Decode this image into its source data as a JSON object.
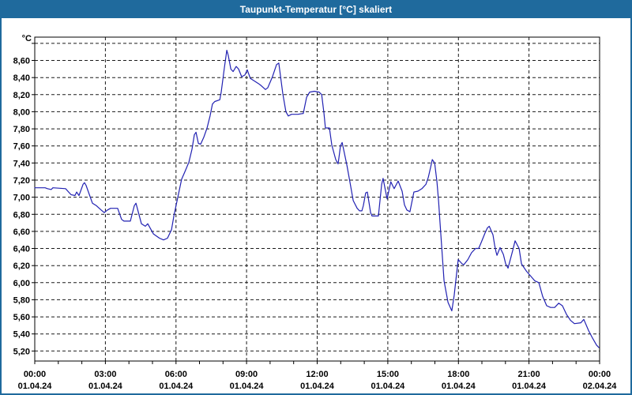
{
  "window": {
    "title": "Taupunkt-Temperatur [°C] skaliert"
  },
  "colors": {
    "titlebar": "#1f6a9d",
    "border": "#1f6a9d",
    "line": "#2121b2",
    "grid": "#1a1a1a",
    "frame": "#000000",
    "text": "#000000",
    "background": "#ffffff"
  },
  "chart_data": {
    "type": "line",
    "title": "Taupunkt-Temperatur [°C] skaliert",
    "y_unit_label": "°C",
    "ylabel": "°C",
    "xlabel": "",
    "ylim": [
      5.083,
      8.873
    ],
    "xlim_hours": [
      0,
      24
    ],
    "grid": "dashed",
    "legend": "none",
    "y_ticks": [
      {
        "value": 8.8,
        "label": ""
      },
      {
        "value": 8.6,
        "label": "8,60"
      },
      {
        "value": 8.4,
        "label": "8,40"
      },
      {
        "value": 8.2,
        "label": "8,20"
      },
      {
        "value": 8.0,
        "label": "8,00"
      },
      {
        "value": 7.8,
        "label": "7,80"
      },
      {
        "value": 7.6,
        "label": "7,60"
      },
      {
        "value": 7.4,
        "label": "7,40"
      },
      {
        "value": 7.2,
        "label": "7,20"
      },
      {
        "value": 7.0,
        "label": "7,00"
      },
      {
        "value": 6.8,
        "label": "6,80"
      },
      {
        "value": 6.6,
        "label": "6,60"
      },
      {
        "value": 6.4,
        "label": "6,40"
      },
      {
        "value": 6.2,
        "label": "6,20"
      },
      {
        "value": 6.0,
        "label": "6,00"
      },
      {
        "value": 5.8,
        "label": "5,80"
      },
      {
        "value": 5.6,
        "label": "5,60"
      },
      {
        "value": 5.4,
        "label": "5,40"
      },
      {
        "value": 5.2,
        "label": "5,20"
      }
    ],
    "x_ticks": [
      {
        "hour": 0,
        "time": "00:00",
        "date": "01.04.24"
      },
      {
        "hour": 3,
        "time": "03:00",
        "date": "01.04.24"
      },
      {
        "hour": 6,
        "time": "06:00",
        "date": "01.04.24"
      },
      {
        "hour": 9,
        "time": "09:00",
        "date": "01.04.24"
      },
      {
        "hour": 12,
        "time": "12:00",
        "date": "01.04.24"
      },
      {
        "hour": 15,
        "time": "15:00",
        "date": "01.04.24"
      },
      {
        "hour": 18,
        "time": "18:00",
        "date": "01.04.24"
      },
      {
        "hour": 21,
        "time": "21:00",
        "date": "01.04.24"
      },
      {
        "hour": 24,
        "time": "00:00",
        "date": "02.04.24"
      }
    ],
    "minor_tick_every_hours": 1,
    "series": [
      {
        "name": "Taupunkt-Temperatur [°C]",
        "points": [
          [
            0.0,
            7.11
          ],
          [
            0.44,
            7.11
          ],
          [
            0.54,
            7.1
          ],
          [
            0.7,
            7.09
          ],
          [
            0.77,
            7.11
          ],
          [
            1.31,
            7.1
          ],
          [
            1.44,
            7.06
          ],
          [
            1.54,
            7.03
          ],
          [
            1.71,
            7.02
          ],
          [
            1.78,
            7.06
          ],
          [
            1.88,
            7.02
          ],
          [
            2.05,
            7.15
          ],
          [
            2.11,
            7.17
          ],
          [
            2.18,
            7.14
          ],
          [
            2.45,
            6.93
          ],
          [
            2.62,
            6.9
          ],
          [
            2.82,
            6.85
          ],
          [
            2.95,
            6.82
          ],
          [
            3.09,
            6.85
          ],
          [
            3.22,
            6.87
          ],
          [
            3.52,
            6.87
          ],
          [
            3.69,
            6.74
          ],
          [
            3.79,
            6.72
          ],
          [
            4.06,
            6.72
          ],
          [
            4.23,
            6.9
          ],
          [
            4.3,
            6.93
          ],
          [
            4.53,
            6.69
          ],
          [
            4.7,
            6.66
          ],
          [
            4.8,
            6.69
          ],
          [
            5.04,
            6.57
          ],
          [
            5.3,
            6.52
          ],
          [
            5.47,
            6.5
          ],
          [
            5.64,
            6.52
          ],
          [
            5.81,
            6.62
          ],
          [
            5.91,
            6.78
          ],
          [
            5.97,
            6.86
          ],
          [
            6.08,
            7.0
          ],
          [
            6.24,
            7.21
          ],
          [
            6.38,
            7.3
          ],
          [
            6.55,
            7.41
          ],
          [
            6.68,
            7.56
          ],
          [
            6.78,
            7.73
          ],
          [
            6.85,
            7.76
          ],
          [
            6.95,
            7.63
          ],
          [
            7.05,
            7.62
          ],
          [
            7.18,
            7.7
          ],
          [
            7.32,
            7.81
          ],
          [
            7.45,
            7.95
          ],
          [
            7.55,
            8.09
          ],
          [
            7.65,
            8.12
          ],
          [
            7.86,
            8.14
          ],
          [
            7.92,
            8.23
          ],
          [
            8.06,
            8.52
          ],
          [
            8.16,
            8.72
          ],
          [
            8.22,
            8.66
          ],
          [
            8.33,
            8.5
          ],
          [
            8.43,
            8.47
          ],
          [
            8.56,
            8.53
          ],
          [
            8.66,
            8.5
          ],
          [
            8.79,
            8.41
          ],
          [
            8.93,
            8.43
          ],
          [
            9.03,
            8.49
          ],
          [
            9.16,
            8.39
          ],
          [
            9.33,
            8.36
          ],
          [
            9.5,
            8.33
          ],
          [
            9.6,
            8.31
          ],
          [
            9.8,
            8.26
          ],
          [
            9.9,
            8.28
          ],
          [
            10.1,
            8.41
          ],
          [
            10.27,
            8.55
          ],
          [
            10.37,
            8.57
          ],
          [
            10.54,
            8.21
          ],
          [
            10.67,
            8.0
          ],
          [
            10.77,
            7.95
          ],
          [
            10.91,
            7.97
          ],
          [
            11.18,
            7.97
          ],
          [
            11.41,
            7.98
          ],
          [
            11.55,
            8.17
          ],
          [
            11.68,
            8.23
          ],
          [
            11.88,
            8.24
          ],
          [
            12.08,
            8.23
          ],
          [
            12.19,
            8.2
          ],
          [
            12.29,
            7.98
          ],
          [
            12.35,
            7.81
          ],
          [
            12.52,
            7.81
          ],
          [
            12.62,
            7.61
          ],
          [
            12.79,
            7.44
          ],
          [
            12.89,
            7.39
          ],
          [
            12.99,
            7.6
          ],
          [
            13.06,
            7.64
          ],
          [
            13.26,
            7.38
          ],
          [
            13.39,
            7.18
          ],
          [
            13.53,
            6.96
          ],
          [
            13.7,
            6.87
          ],
          [
            13.8,
            6.84
          ],
          [
            13.9,
            6.84
          ],
          [
            13.96,
            6.9
          ],
          [
            14.06,
            7.05
          ],
          [
            14.13,
            7.06
          ],
          [
            14.27,
            6.82
          ],
          [
            14.33,
            6.78
          ],
          [
            14.6,
            6.78
          ],
          [
            14.74,
            7.15
          ],
          [
            14.8,
            7.22
          ],
          [
            14.97,
            6.98
          ],
          [
            15.13,
            7.18
          ],
          [
            15.27,
            7.1
          ],
          [
            15.44,
            7.19
          ],
          [
            15.61,
            7.07
          ],
          [
            15.71,
            6.91
          ],
          [
            15.81,
            6.85
          ],
          [
            15.94,
            6.83
          ],
          [
            16.11,
            7.06
          ],
          [
            16.28,
            7.07
          ],
          [
            16.45,
            7.1
          ],
          [
            16.62,
            7.15
          ],
          [
            16.72,
            7.23
          ],
          [
            16.82,
            7.35
          ],
          [
            16.89,
            7.44
          ],
          [
            16.99,
            7.4
          ],
          [
            17.09,
            7.18
          ],
          [
            17.16,
            6.95
          ],
          [
            17.22,
            6.7
          ],
          [
            17.32,
            6.3
          ],
          [
            17.39,
            6.02
          ],
          [
            17.56,
            5.77
          ],
          [
            17.72,
            5.67
          ],
          [
            17.82,
            5.85
          ],
          [
            17.92,
            6.1
          ],
          [
            17.99,
            6.27
          ],
          [
            18.16,
            6.22
          ],
          [
            18.23,
            6.21
          ],
          [
            18.4,
            6.27
          ],
          [
            18.56,
            6.35
          ],
          [
            18.73,
            6.4
          ],
          [
            18.86,
            6.4
          ],
          [
            18.97,
            6.47
          ],
          [
            19.13,
            6.58
          ],
          [
            19.23,
            6.64
          ],
          [
            19.31,
            6.66
          ],
          [
            19.47,
            6.56
          ],
          [
            19.54,
            6.44
          ],
          [
            19.6,
            6.36
          ],
          [
            19.64,
            6.32
          ],
          [
            19.77,
            6.41
          ],
          [
            19.91,
            6.33
          ],
          [
            20.01,
            6.22
          ],
          [
            20.11,
            6.17
          ],
          [
            20.31,
            6.38
          ],
          [
            20.41,
            6.49
          ],
          [
            20.58,
            6.4
          ],
          [
            20.68,
            6.22
          ],
          [
            20.88,
            6.14
          ],
          [
            21.0,
            6.1
          ],
          [
            21.25,
            6.02
          ],
          [
            21.42,
            6.0
          ],
          [
            21.58,
            5.84
          ],
          [
            21.75,
            5.73
          ],
          [
            21.92,
            5.71
          ],
          [
            22.09,
            5.71
          ],
          [
            22.26,
            5.76
          ],
          [
            22.42,
            5.73
          ],
          [
            22.59,
            5.63
          ],
          [
            22.76,
            5.56
          ],
          [
            22.93,
            5.52
          ],
          [
            23.2,
            5.53
          ],
          [
            23.33,
            5.57
          ],
          [
            23.53,
            5.44
          ],
          [
            23.7,
            5.35
          ],
          [
            23.87,
            5.27
          ],
          [
            23.97,
            5.24
          ]
        ]
      }
    ]
  }
}
